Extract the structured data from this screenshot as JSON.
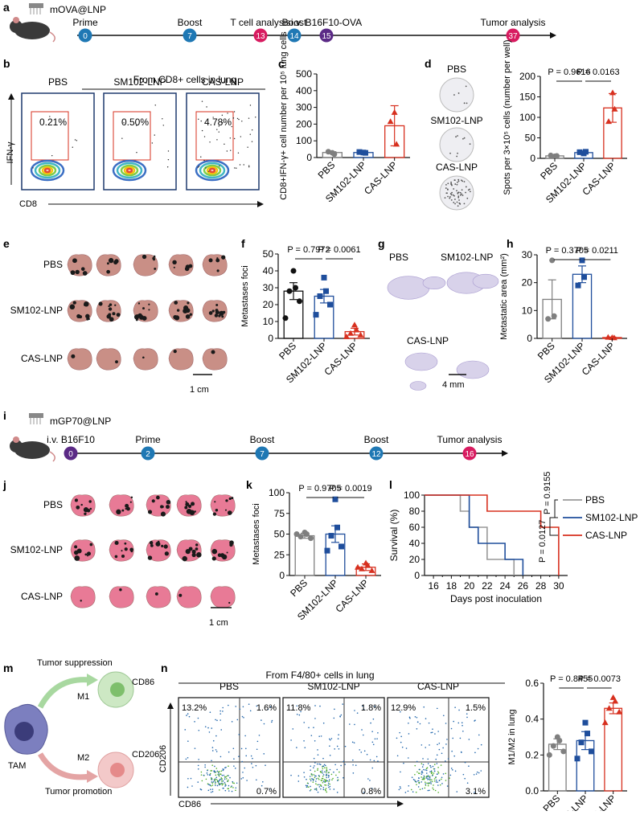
{
  "panel_letters": [
    "a",
    "b",
    "c",
    "d",
    "e",
    "f",
    "g",
    "h",
    "i",
    "j",
    "k",
    "l",
    "m",
    "n"
  ],
  "timeline_a": {
    "vaccine": "mOVA@LNP",
    "events": [
      {
        "label": "Prime",
        "day": "0",
        "color": "#1f78b4"
      },
      {
        "label": "Boost",
        "day": "7",
        "color": "#1f78b4"
      },
      {
        "label": "T cell analysis",
        "day": "13",
        "color": "#d81b60"
      },
      {
        "label": "Boost",
        "day": "14",
        "color": "#1f78b4"
      },
      {
        "label": "i.v. B16F10-OVA",
        "day": "15",
        "color": "#5b2a86"
      },
      {
        "label": "Tumor analysis",
        "day": "37",
        "color": "#d81b60"
      }
    ]
  },
  "panel_b": {
    "title": "From CD8+ cells in lung",
    "ylabel": "IFN-γ",
    "xlabel": "CD8",
    "groups": [
      {
        "name": "PBS",
        "pct": "0.21%"
      },
      {
        "name": "SM102-LNP",
        "pct": "0.50%"
      },
      {
        "name": "CAS-LNP",
        "pct": "4.78%"
      }
    ]
  },
  "panel_d": {
    "wells": [
      "PBS",
      "SM102-LNP",
      "CAS-LNP"
    ]
  },
  "panel_e": {
    "rows": [
      "PBS",
      "SM102-LNP",
      "CAS-LNP"
    ],
    "scale": "1 cm"
  },
  "panel_g": {
    "labels": [
      "PBS",
      "SM102-LNP",
      "CAS-LNP"
    ],
    "scale": "4 mm"
  },
  "timeline_i": {
    "vaccine": "mGP70@LNP",
    "events": [
      {
        "label": "i.v. B16F10",
        "day": "0",
        "color": "#5b2a86"
      },
      {
        "label": "Prime",
        "day": "2",
        "color": "#1f78b4"
      },
      {
        "label": "Boost",
        "day": "7",
        "color": "#1f78b4"
      },
      {
        "label": "Boost",
        "day": "12",
        "color": "#1f78b4"
      },
      {
        "label": "Tumor analysis",
        "day": "16",
        "color": "#d81b60"
      }
    ]
  },
  "panel_j": {
    "rows": [
      "PBS",
      "SM102-LNP",
      "CAS-LNP"
    ],
    "scale": "1 cm"
  },
  "panel_m": {
    "tam": "TAM",
    "m1": "M1",
    "m2": "M2",
    "cd86": "CD86",
    "cd206": "CD206",
    "suppression": "Tumor suppression",
    "promotion": "Tumor promotion"
  },
  "panel_n": {
    "title": "From F4/80+ cells in lung",
    "ylabel": "CD206",
    "xlabel": "CD86",
    "groups": [
      {
        "name": "PBS",
        "ul": "13.2%",
        "ur": "1.6%",
        "lr": "0.7%"
      },
      {
        "name": "SM102-LNP",
        "ul": "11.8%",
        "ur": "1.8%",
        "lr": "0.8%"
      },
      {
        "name": "CAS-LNP",
        "ul": "12.9%",
        "ur": "1.5%",
        "lr": "3.1%"
      }
    ]
  },
  "chart_data": [
    {
      "id": "c",
      "type": "bar",
      "ylabel": "CD8+IFN-γ+ cell number per 10⁵ lung cells",
      "categories": [
        "PBS",
        "SM102-LNP",
        "CAS-LNP"
      ],
      "values": [
        30,
        30,
        190
      ],
      "errors": [
        5,
        5,
        120
      ],
      "points": [
        [
          28,
          20,
          35
        ],
        [
          30,
          28,
          33
        ],
        [
          270,
          80,
          215
        ]
      ],
      "ylim": [
        0,
        500
      ],
      "yticks": [
        0,
        100,
        200,
        300,
        400,
        500
      ],
      "colors": [
        "#7f7f7f",
        "#1f4e9c",
        "#d7301f"
      ],
      "markers": [
        "circle",
        "square",
        "triangle"
      ],
      "pvalues": []
    },
    {
      "id": "d",
      "type": "bar",
      "ylabel": "Spots per 3×10⁵ cells (number per well)",
      "categories": [
        "PBS",
        "SM102-LNP",
        "CAS-LNP"
      ],
      "values": [
        6,
        14,
        123
      ],
      "errors": [
        1,
        2,
        35
      ],
      "points": [
        [
          5,
          6,
          7
        ],
        [
          12,
          16,
          15
        ],
        [
          160,
          120,
          90
        ]
      ],
      "ylim": [
        0,
        200
      ],
      "yticks": [
        0,
        50,
        100,
        150,
        200
      ],
      "colors": [
        "#7f7f7f",
        "#1f4e9c",
        "#d7301f"
      ],
      "markers": [
        "circle",
        "square",
        "triangle"
      ],
      "pvalues": [
        {
          "from": 0,
          "to": 1,
          "label": "P = 0.9616"
        },
        {
          "from": 1,
          "to": 2,
          "label": "P = 0.0163"
        }
      ]
    },
    {
      "id": "f",
      "type": "bar",
      "ylabel": "Metastases foci",
      "categories": [
        "PBS",
        "SM102-LNP",
        "CAS-LNP"
      ],
      "values": [
        28,
        25,
        4
      ],
      "errors": [
        5,
        4,
        2
      ],
      "points": [
        [
          40,
          30,
          28,
          22,
          12
        ],
        [
          36,
          28,
          25,
          20,
          14
        ],
        [
          8,
          5,
          3,
          2,
          1
        ]
      ],
      "ylim": [
        0,
        50
      ],
      "yticks": [
        0,
        10,
        20,
        30,
        40,
        50
      ],
      "colors": [
        "#111111",
        "#1f4e9c",
        "#d7301f"
      ],
      "markers": [
        "circle",
        "square",
        "triangle"
      ],
      "pvalues": [
        {
          "from": 0,
          "to": 1,
          "label": "P = 0.7972"
        },
        {
          "from": 1,
          "to": 2,
          "label": "P = 0.0061"
        }
      ]
    },
    {
      "id": "h",
      "type": "bar",
      "ylabel": "Metastatic area (mm²)",
      "categories": [
        "PBS",
        "SM102-LNP",
        "CAS-LNP"
      ],
      "values": [
        14,
        23,
        0.3
      ],
      "errors": [
        7,
        3,
        0.2
      ],
      "points": [
        [
          28,
          8,
          7
        ],
        [
          28,
          22,
          19
        ],
        [
          0.3,
          0.2,
          0.4
        ]
      ],
      "ylim": [
        0,
        30
      ],
      "yticks": [
        0,
        10,
        20,
        30
      ],
      "colors": [
        "#7f7f7f",
        "#1f4e9c",
        "#d7301f"
      ],
      "markers": [
        "circle",
        "square",
        "triangle"
      ],
      "pvalues": [
        {
          "from": 0,
          "to": 1,
          "label": "P = 0.3705"
        },
        {
          "from": 1,
          "to": 2,
          "label": "P = 0.0211"
        }
      ]
    },
    {
      "id": "k",
      "type": "bar",
      "ylabel": "Metastases foci",
      "categories": [
        "PBS",
        "SM102-LNP",
        "CAS-LNP"
      ],
      "values": [
        48,
        50,
        10
      ],
      "errors": [
        3,
        10,
        4
      ],
      "points": [
        [
          52,
          50,
          47,
          45,
          50
        ],
        [
          92,
          58,
          48,
          35,
          30
        ],
        [
          15,
          12,
          8,
          6,
          10
        ]
      ],
      "ylim": [
        0,
        100
      ],
      "yticks": [
        0,
        25,
        50,
        75,
        100
      ],
      "colors": [
        "#7f7f7f",
        "#1f4e9c",
        "#d7301f"
      ],
      "markers": [
        "circle",
        "square",
        "triangle"
      ],
      "pvalues": [
        {
          "from": 0,
          "to": 1,
          "label": "P = 0.9705"
        },
        {
          "from": 1,
          "to": 2,
          "label": "P = 0.0019"
        }
      ]
    },
    {
      "id": "l",
      "type": "line",
      "ylabel": "Survival (%)",
      "xlabel": "Days post inoculation",
      "xlim": [
        15,
        31
      ],
      "xticks": [
        16,
        18,
        20,
        22,
        24,
        26,
        28,
        30
      ],
      "ylim": [
        0,
        100
      ],
      "yticks": [
        0,
        20,
        40,
        60,
        80,
        100
      ],
      "series": [
        {
          "name": "PBS",
          "color": "#999999",
          "steps": [
            [
              15,
              100
            ],
            [
              19,
              100
            ],
            [
              19,
              80
            ],
            [
              20,
              80
            ],
            [
              20,
              60
            ],
            [
              22,
              60
            ],
            [
              22,
              20
            ],
            [
              25,
              20
            ],
            [
              25,
              0
            ]
          ]
        },
        {
          "name": "SM102-LNP",
          "color": "#1f4e9c",
          "steps": [
            [
              15,
              100
            ],
            [
              20,
              100
            ],
            [
              20,
              60
            ],
            [
              21,
              60
            ],
            [
              21,
              40
            ],
            [
              24,
              40
            ],
            [
              24,
              20
            ],
            [
              26,
              20
            ],
            [
              26,
              0
            ]
          ]
        },
        {
          "name": "CAS-LNP",
          "color": "#d7301f",
          "steps": [
            [
              15,
              100
            ],
            [
              22,
              100
            ],
            [
              22,
              80
            ],
            [
              28,
              80
            ],
            [
              28,
              60
            ],
            [
              30,
              60
            ],
            [
              30,
              0
            ]
          ]
        }
      ],
      "pvalues": [
        "P = 0.9155",
        "P = 0.0127"
      ]
    },
    {
      "id": "n_bar",
      "type": "bar",
      "ylabel": "M1/M2 in lung",
      "categories": [
        "PBS",
        "SM102-LNP",
        "CAS-LNP"
      ],
      "values": [
        0.26,
        0.28,
        0.46
      ],
      "errors": [
        0.03,
        0.05,
        0.03
      ],
      "points": [
        [
          0.3,
          0.28,
          0.25,
          0.22,
          0.2
        ],
        [
          0.38,
          0.32,
          0.27,
          0.22,
          0.18
        ],
        [
          0.52,
          0.5,
          0.46,
          0.44,
          0.38
        ]
      ],
      "ylim": [
        0,
        0.6
      ],
      "yticks": [
        0.0,
        0.2,
        0.4,
        0.6
      ],
      "colors": [
        "#7f7f7f",
        "#1f4e9c",
        "#d7301f"
      ],
      "markers": [
        "circle",
        "square",
        "triangle"
      ],
      "pvalues": [
        {
          "from": 0,
          "to": 1,
          "label": "P = 0.8455"
        },
        {
          "from": 1,
          "to": 2,
          "label": "P = 0.0073"
        }
      ]
    }
  ]
}
